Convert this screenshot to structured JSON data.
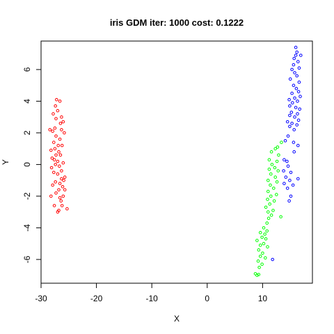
{
  "chart_data": {
    "type": "scatter",
    "title": "iris GDM iter: 1000 cost: 0.1222",
    "xlabel": "X",
    "ylabel": "Y",
    "xlim": [
      -30,
      19
    ],
    "ylim": [
      -7.5,
      7.8
    ],
    "xticks": [
      -30,
      -20,
      -10,
      0,
      10
    ],
    "yticks": [
      -6,
      -4,
      -2,
      0,
      2,
      4,
      6
    ],
    "grid": false,
    "legend": "none",
    "series": [
      {
        "color": "#ff0000",
        "points": [
          [
            -27.2,
            4.1
          ],
          [
            -26.6,
            4.0
          ],
          [
            -27.4,
            3.7
          ],
          [
            -27.0,
            3.4
          ],
          [
            -27.8,
            3.2
          ],
          [
            -26.3,
            3.0
          ],
          [
            -27.3,
            2.9
          ],
          [
            -26.0,
            2.7
          ],
          [
            -26.5,
            2.6
          ],
          [
            -27.5,
            2.3
          ],
          [
            -28.4,
            2.2
          ],
          [
            -27.9,
            2.1
          ],
          [
            -26.3,
            2.2
          ],
          [
            -25.8,
            2.0
          ],
          [
            -27.3,
            1.8
          ],
          [
            -26.6,
            1.6
          ],
          [
            -27.7,
            1.4
          ],
          [
            -26.9,
            1.2
          ],
          [
            -26.2,
            1.2
          ],
          [
            -27.5,
            1.0
          ],
          [
            -28.2,
            0.9
          ],
          [
            -26.8,
            0.8
          ],
          [
            -27.3,
            0.6
          ],
          [
            -26.5,
            0.6
          ],
          [
            -28.0,
            0.4
          ],
          [
            -27.6,
            0.3
          ],
          [
            -27.0,
            0.2
          ],
          [
            -26.0,
            0.1
          ],
          [
            -27.4,
            0.0
          ],
          [
            -26.7,
            -0.1
          ],
          [
            -28.1,
            -0.2
          ],
          [
            -26.3,
            -0.4
          ],
          [
            -27.7,
            -0.5
          ],
          [
            -27.0,
            -0.6
          ],
          [
            -25.7,
            -0.8
          ],
          [
            -26.3,
            -0.9
          ],
          [
            -25.9,
            -1.0
          ],
          [
            -27.4,
            -1.1
          ],
          [
            -26.6,
            -1.2
          ],
          [
            -27.9,
            -1.3
          ],
          [
            -26.1,
            -1.4
          ],
          [
            -25.7,
            -1.6
          ],
          [
            -26.8,
            -1.6
          ],
          [
            -27.3,
            -1.8
          ],
          [
            -26.0,
            -2.0
          ],
          [
            -28.2,
            -2.0
          ],
          [
            -26.6,
            -2.1
          ],
          [
            -26.4,
            -2.3
          ],
          [
            -27.6,
            -2.6
          ],
          [
            -26.2,
            -2.6
          ],
          [
            -25.3,
            -2.8
          ],
          [
            -26.8,
            -2.9
          ],
          [
            -27.0,
            -3.0
          ]
        ]
      },
      {
        "color": "#00ff00",
        "points": [
          [
            13.4,
            1.4
          ],
          [
            12.7,
            1.1
          ],
          [
            12.3,
            1.0
          ],
          [
            11.6,
            0.8
          ],
          [
            12.9,
            0.6
          ],
          [
            11.2,
            0.3
          ],
          [
            12.6,
            0.2
          ],
          [
            11.7,
            0.0
          ],
          [
            12.2,
            -0.2
          ],
          [
            11.2,
            -0.3
          ],
          [
            12.8,
            -0.4
          ],
          [
            11.5,
            -0.6
          ],
          [
            12.3,
            -0.8
          ],
          [
            11.0,
            -1.0
          ],
          [
            12.6,
            -1.1
          ],
          [
            11.4,
            -1.3
          ],
          [
            12.0,
            -1.5
          ],
          [
            11.0,
            -1.7
          ],
          [
            12.5,
            -1.9
          ],
          [
            11.5,
            -2.0
          ],
          [
            10.9,
            -2.2
          ],
          [
            12.1,
            -2.3
          ],
          [
            11.3,
            -2.5
          ],
          [
            10.6,
            -2.7
          ],
          [
            11.9,
            -2.9
          ],
          [
            11.0,
            -3.0
          ],
          [
            11.6,
            -3.2
          ],
          [
            13.3,
            -3.3
          ],
          [
            11.1,
            -3.4
          ],
          [
            10.8,
            -3.7
          ],
          [
            10.2,
            -4.0
          ],
          [
            10.8,
            -4.2
          ],
          [
            9.6,
            -4.3
          ],
          [
            10.4,
            -4.4
          ],
          [
            9.9,
            -4.6
          ],
          [
            10.6,
            -4.7
          ],
          [
            9.0,
            -4.8
          ],
          [
            10.2,
            -5.0
          ],
          [
            9.6,
            -5.1
          ],
          [
            10.9,
            -5.2
          ],
          [
            9.3,
            -5.4
          ],
          [
            10.0,
            -5.6
          ],
          [
            9.6,
            -5.8
          ],
          [
            10.5,
            -5.9
          ],
          [
            9.2,
            -6.1
          ],
          [
            9.9,
            -6.3
          ],
          [
            9.4,
            -6.5
          ],
          [
            8.7,
            -6.9
          ],
          [
            9.0,
            -7.0
          ],
          [
            9.3,
            -6.95
          ]
        ]
      },
      {
        "color": "#0000ff",
        "points": [
          [
            16.0,
            7.4
          ],
          [
            16.2,
            7.1
          ],
          [
            16.0,
            6.9
          ],
          [
            16.9,
            6.9
          ],
          [
            15.7,
            6.7
          ],
          [
            16.4,
            6.5
          ],
          [
            15.6,
            6.3
          ],
          [
            16.6,
            6.1
          ],
          [
            15.3,
            6.0
          ],
          [
            15.8,
            5.8
          ],
          [
            16.2,
            5.6
          ],
          [
            15.0,
            5.4
          ],
          [
            16.6,
            5.2
          ],
          [
            15.6,
            5.0
          ],
          [
            16.1,
            4.8
          ],
          [
            16.5,
            4.6
          ],
          [
            15.3,
            4.5
          ],
          [
            16.8,
            4.3
          ],
          [
            15.8,
            4.2
          ],
          [
            14.8,
            4.1
          ],
          [
            16.3,
            4.0
          ],
          [
            15.4,
            3.9
          ],
          [
            14.9,
            3.7
          ],
          [
            16.0,
            3.6
          ],
          [
            16.7,
            3.5
          ],
          [
            15.2,
            3.3
          ],
          [
            16.3,
            3.2
          ],
          [
            14.9,
            3.1
          ],
          [
            15.8,
            3.0
          ],
          [
            16.5,
            2.8
          ],
          [
            14.5,
            2.7
          ],
          [
            15.3,
            2.6
          ],
          [
            16.2,
            2.5
          ],
          [
            14.9,
            2.4
          ],
          [
            15.7,
            2.2
          ],
          [
            14.6,
            1.8
          ],
          [
            14.1,
            1.5
          ],
          [
            15.6,
            1.4
          ],
          [
            16.4,
            1.2
          ],
          [
            15.7,
            0.8
          ],
          [
            13.9,
            0.3
          ],
          [
            14.4,
            0.2
          ],
          [
            14.6,
            -0.1
          ],
          [
            13.8,
            -0.4
          ],
          [
            15.1,
            -0.5
          ],
          [
            14.2,
            -0.8
          ],
          [
            14.9,
            -1.0
          ],
          [
            16.4,
            -0.9
          ],
          [
            13.9,
            -1.2
          ],
          [
            15.5,
            -1.3
          ],
          [
            14.5,
            -1.5
          ],
          [
            15.1,
            -2.0
          ],
          [
            14.8,
            -2.3
          ],
          [
            11.8,
            -6.0
          ]
        ]
      }
    ]
  }
}
